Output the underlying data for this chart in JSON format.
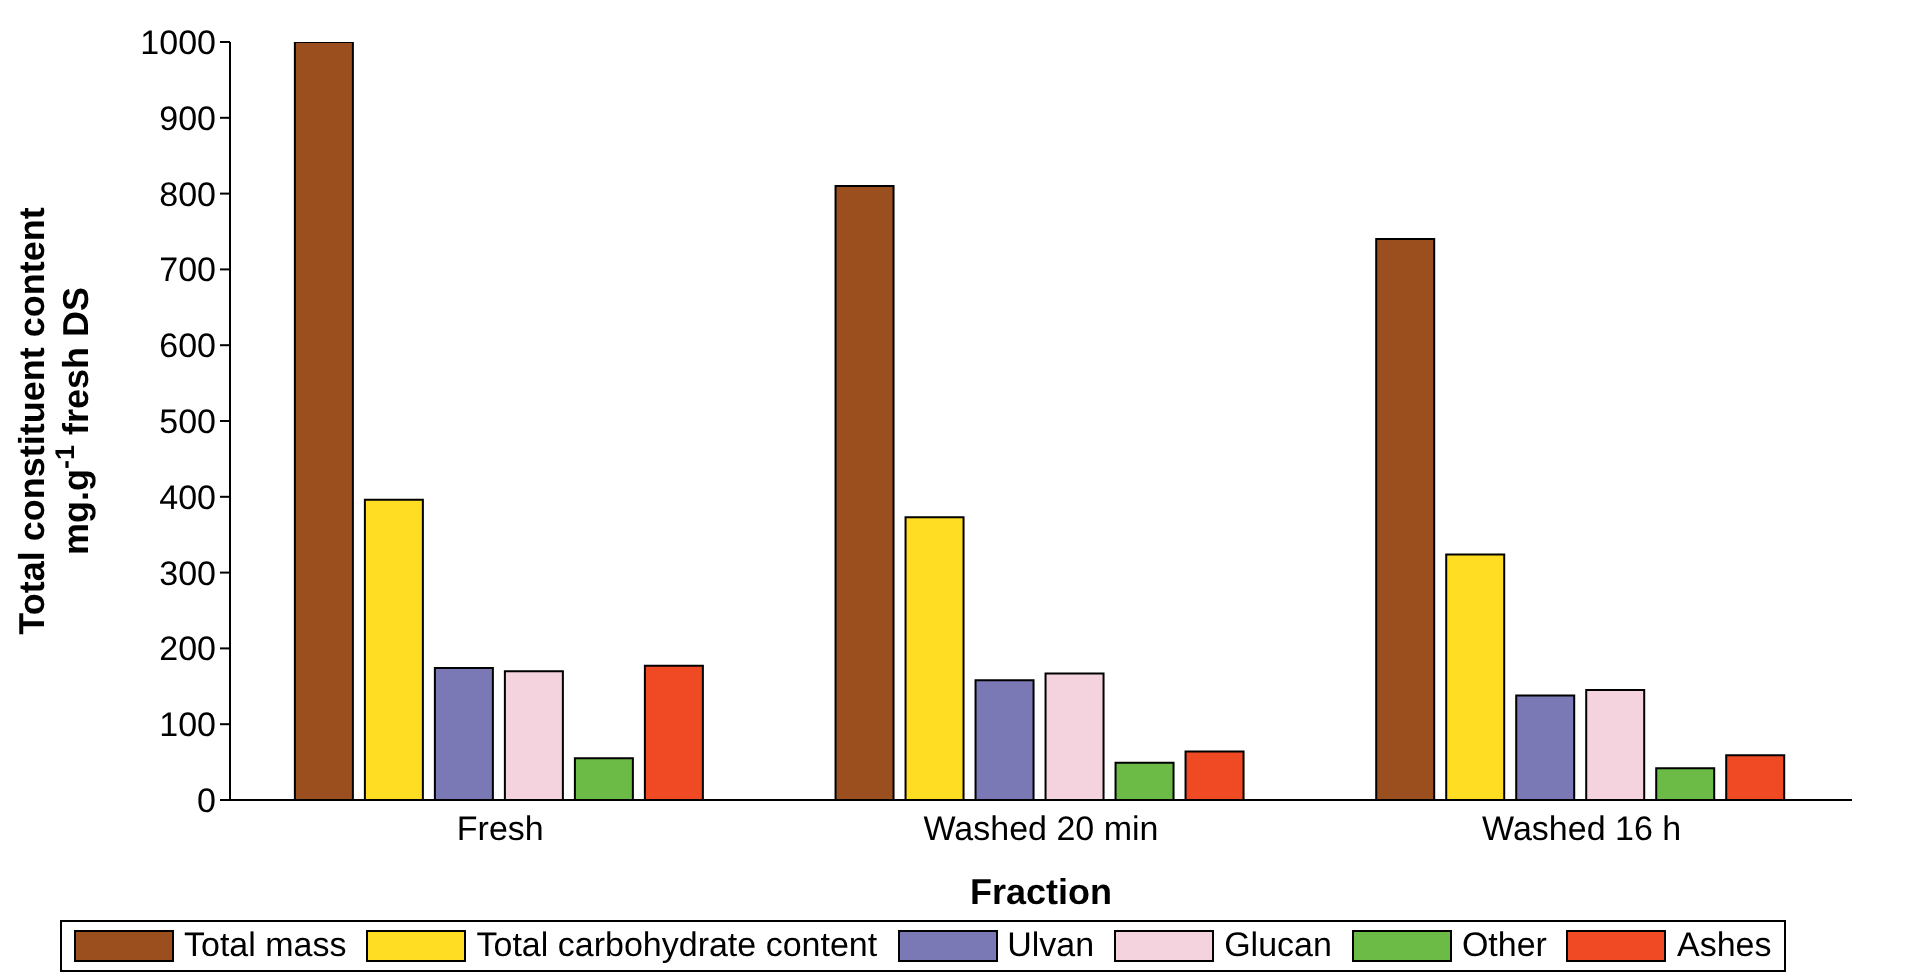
{
  "chart_data": {
    "type": "bar",
    "xlabel": "Fraction",
    "ylabel": "Total constituent content\nmg.g$^{-1}$ fresh DS",
    "categories": [
      "Fresh",
      "Washed 20 min",
      "Washed 16 h"
    ],
    "series": [
      {
        "name": "Total mass",
        "color": "#9b4f1f",
        "values": [
          1000,
          810,
          740
        ]
      },
      {
        "name": "Total carbohydrate content",
        "color": "#ffdd22",
        "values": [
          396,
          373,
          324
        ]
      },
      {
        "name": "Ulvan",
        "color": "#7b78b6",
        "values": [
          174,
          158,
          138
        ]
      },
      {
        "name": "Glucan",
        "color": "#f4d3de",
        "values": [
          170,
          167,
          145
        ]
      },
      {
        "name": "Other",
        "color": "#6bbb46",
        "values": [
          55,
          49,
          42
        ]
      },
      {
        "name": "Ashes",
        "color": "#f04a24",
        "values": [
          177,
          64,
          59
        ]
      }
    ],
    "ylim": [
      0,
      1000
    ],
    "yticks": [
      0,
      100,
      200,
      300,
      400,
      500,
      600,
      700,
      800,
      900,
      1000
    ],
    "grid": false,
    "legend": "bottom"
  }
}
